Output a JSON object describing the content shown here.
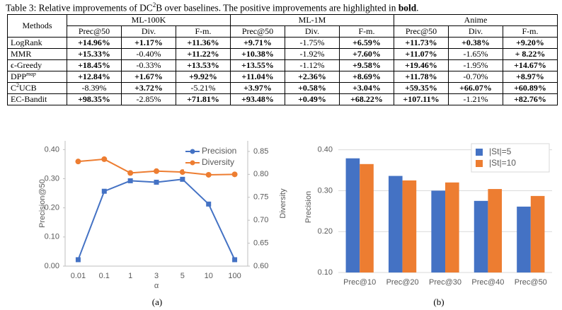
{
  "caption": {
    "prefix": "Table 3: Relative improvements of DC",
    "sup": "2",
    "middle": "B over baselines. The positive improvements are highlighted in ",
    "bold": "bold",
    "suffix": "."
  },
  "table": {
    "header": [
      "Methods",
      "ML-100K",
      "ML-1M",
      "Anime"
    ],
    "subheader": [
      "Prec@50",
      "Div.",
      "F-m.",
      "Prec@50",
      "Div.",
      "F-m.",
      "Prec@50",
      "Div.",
      "F-m."
    ],
    "rows": [
      {
        "method": {
          "text": "LogRank"
        },
        "cells": [
          "+14.96%",
          "+1.17%",
          "+11.36%",
          "+9.71%",
          "-1.75%",
          "+6.59%",
          "+11.73%",
          "+0.38%",
          "+9.20%"
        ]
      },
      {
        "method": {
          "text": "MMR"
        },
        "cells": [
          "+15.33%",
          "-0.40%",
          "+11.22%",
          "+10.38%",
          "-1.92%",
          "+7.60%",
          "+11.07%",
          "-1.65%",
          "+ 8.22%"
        ]
      },
      {
        "method": {
          "text": "ϵ-Greedy"
        },
        "cells": [
          "+18.45%",
          "-0.33%",
          "+13.53%",
          "+13.55%",
          "-1.12%",
          "+9.58%",
          "+19.46%",
          "-1.95%",
          "+14.67%"
        ]
      },
      {
        "method": {
          "text": "DPP",
          "sup": "map"
        },
        "cells": [
          "+12.84%",
          "+1.67%",
          "+9.92%",
          "+11.04%",
          "+2.36%",
          "+8.69%",
          "+11.78%",
          "-0.70%",
          "+8.97%"
        ]
      },
      {
        "method": {
          "text": "C",
          "sup": "2",
          "after": "UCB"
        },
        "cells": [
          "-8.39%",
          "+3.72%",
          "-5.21%",
          "+3.97%",
          "+0.58%",
          "+3.04%",
          "+59.35%",
          "+66.07%",
          "+60.89%"
        ]
      },
      {
        "method": {
          "text": "EC-Bandit"
        },
        "cells": [
          "+98.35%",
          "-2.85%",
          "+71.81%",
          "+93.48%",
          "+0.49%",
          "+68.22%",
          "+107.11%",
          "-1.21%",
          "+82.76%"
        ]
      }
    ]
  },
  "chart_data": [
    {
      "type": "line",
      "caption": "(a)",
      "x_label": "α",
      "y_label": "Precision@50",
      "y2_label": "Diversity",
      "categories": [
        "0.01",
        "0.1",
        "1",
        "3",
        "5",
        "10",
        "100"
      ],
      "series": [
        {
          "name": "Precision",
          "color": "#4472c4",
          "values": [
            0.022,
            0.257,
            0.293,
            0.288,
            0.298,
            0.213,
            0.022
          ]
        },
        {
          "name": "Diversity",
          "color": "#ed7d31",
          "axis": "y2",
          "values": [
            0.828,
            0.833,
            0.803,
            0.807,
            0.805,
            0.799,
            0.8
          ]
        }
      ],
      "ylim": [
        0,
        0.43
      ],
      "yticks": [
        {
          "value": 0,
          "label": "0.00"
        },
        {
          "value": 0.1,
          "label": "0.10"
        },
        {
          "value": 0.2,
          "label": "0.20"
        },
        {
          "value": 0.3,
          "label": "0.30"
        },
        {
          "value": 0.4,
          "label": "0.40"
        }
      ],
      "y2lim": [
        0.6,
        0.873
      ],
      "y2ticks": [
        {
          "value": 0.6,
          "label": "0.60"
        },
        {
          "value": 0.65,
          "label": "0.65"
        },
        {
          "value": 0.7,
          "label": "0.70"
        },
        {
          "value": 0.75,
          "label": "0.75"
        },
        {
          "value": 0.8,
          "label": "0.80"
        },
        {
          "value": 0.85,
          "label": "0.85"
        }
      ],
      "grid": false,
      "legend": "upper right"
    },
    {
      "type": "bar",
      "caption": "(b)",
      "y_label": "Precision",
      "categories": [
        "Prec@10",
        "Prec@20",
        "Prec@30",
        "Prec@40",
        "Prec@50"
      ],
      "series": [
        {
          "name": "|St|=5",
          "color": "#4472c4",
          "values": [
            0.379,
            0.336,
            0.3,
            0.275,
            0.261
          ]
        },
        {
          "name": "|St|=10",
          "color": "#ed7d31",
          "values": [
            0.365,
            0.325,
            0.32,
            0.304,
            0.287
          ]
        }
      ],
      "ylim": [
        0.1,
        0.42
      ],
      "yticks": [
        {
          "value": 0.1,
          "label": "0.10"
        },
        {
          "value": 0.2,
          "label": "0.20"
        },
        {
          "value": 0.3,
          "label": "0.30"
        },
        {
          "value": 0.4,
          "label": "0.40"
        }
      ],
      "grid": true,
      "legend": "upper right"
    }
  ]
}
